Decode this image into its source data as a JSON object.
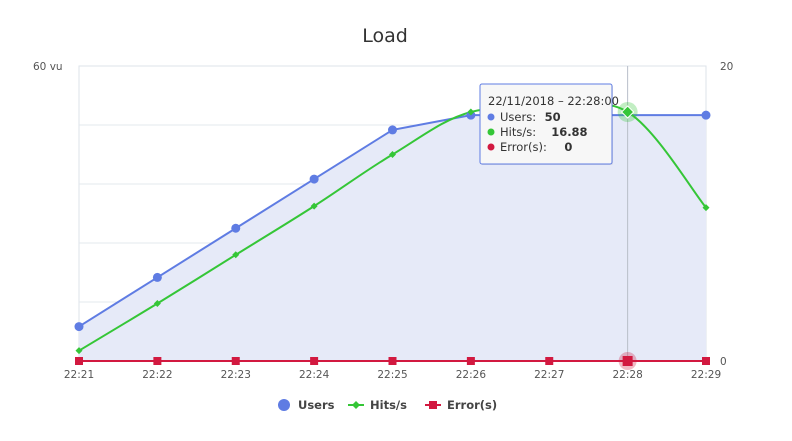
{
  "chart_data": {
    "type": "line",
    "title": "Load",
    "x": [
      "22:21",
      "22:22",
      "22:23",
      "22:24",
      "22:25",
      "22:26",
      "22:27",
      "22:28",
      "22:29"
    ],
    "y_left_ticks": [
      "60 vu"
    ],
    "y_left_max": 60,
    "y_right_ticks": [
      "20",
      "0"
    ],
    "y_right_max": 20,
    "grid": true,
    "legend_position": "bottom",
    "series": [
      {
        "name": "Users",
        "axis": "left",
        "color": "#5f7ce3",
        "marker": "circle",
        "area": true,
        "values": [
          7,
          17,
          27,
          37,
          47,
          50,
          50,
          50,
          50
        ]
      },
      {
        "name": "Hits/s",
        "axis": "right",
        "color": "#35c637",
        "marker": "diamond",
        "area": false,
        "values": [
          0.7,
          3.9,
          7.2,
          10.5,
          14.0,
          16.88,
          16.88,
          16.88,
          10.4
        ]
      },
      {
        "name": "Error(s)",
        "axis": "right",
        "color": "#d21940",
        "marker": "square",
        "area": false,
        "values": [
          0,
          0,
          0,
          0,
          0,
          0,
          0,
          0,
          0
        ]
      }
    ],
    "tooltip": {
      "date": "22/11/2018 – 22:28:00",
      "rows": [
        {
          "label": "Users:",
          "value": "50",
          "color": "#5f7ce3"
        },
        {
          "label": "Hits/s:",
          "value": "16.88",
          "color": "#35c637"
        },
        {
          "label": "Error(s):",
          "value": "0",
          "color": "#d21940"
        }
      ]
    },
    "hover_index": 7
  }
}
